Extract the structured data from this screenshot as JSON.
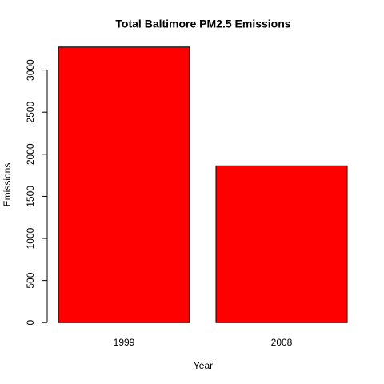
{
  "chart_data": {
    "type": "bar",
    "title": "Total Baltimore PM2.5 Emissions",
    "x_label": "Year",
    "y_label": "Emissions",
    "categories": [
      "1999",
      "2008"
    ],
    "values": [
      3274,
      1862
    ],
    "color": "#ff0000",
    "ylim": [
      -131,
      3405
    ],
    "yticks": [
      0,
      500,
      1000,
      1500,
      2000,
      2500,
      3000
    ]
  }
}
